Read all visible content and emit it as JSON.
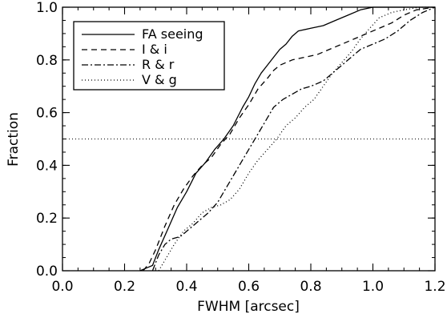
{
  "chart_data": {
    "type": "line",
    "title": "",
    "xlabel": "FWHM [arcsec]",
    "ylabel": "Fraction",
    "xlim": [
      0.0,
      1.2
    ],
    "ylim": [
      0.0,
      1.0
    ],
    "x_ticks": [
      "0.0",
      "0.2",
      "0.4",
      "0.6",
      "0.8",
      "1.0",
      "1.2"
    ],
    "y_ticks": [
      "0.0",
      "0.2",
      "0.4",
      "0.6",
      "0.8",
      "1.0"
    ],
    "x_tick_values": [
      0.0,
      0.2,
      0.4,
      0.6,
      0.8,
      1.0,
      1.2
    ],
    "y_tick_values": [
      0.0,
      0.2,
      0.4,
      0.6,
      0.8,
      1.0
    ],
    "reference_line": {
      "y": 0.5,
      "style": "dotted"
    },
    "legend": {
      "position": "top-left"
    },
    "grid": false,
    "series": [
      {
        "name": "FA seeing",
        "style": "solid",
        "x": [
          0.25,
          0.27,
          0.29,
          0.31,
          0.34,
          0.37,
          0.4,
          0.43,
          0.46,
          0.49,
          0.52,
          0.55,
          0.58,
          0.6,
          0.62,
          0.64,
          0.66,
          0.68,
          0.7,
          0.72,
          0.74,
          0.76,
          0.8,
          0.84,
          0.88,
          0.92,
          0.96,
          1.0,
          1.04,
          1.08,
          1.12,
          1.16,
          1.2
        ],
        "y": [
          0.0,
          0.01,
          0.02,
          0.08,
          0.16,
          0.24,
          0.3,
          0.37,
          0.41,
          0.46,
          0.5,
          0.55,
          0.62,
          0.66,
          0.71,
          0.75,
          0.78,
          0.81,
          0.84,
          0.86,
          0.89,
          0.91,
          0.92,
          0.93,
          0.95,
          0.97,
          0.99,
          1.0,
          1.0,
          1.0,
          1.0,
          1.0,
          1.0
        ]
      },
      {
        "name": "I & i",
        "style": "dashed",
        "x": [
          0.26,
          0.28,
          0.3,
          0.33,
          0.36,
          0.39,
          0.42,
          0.45,
          0.48,
          0.51,
          0.54,
          0.57,
          0.6,
          0.63,
          0.66,
          0.68,
          0.7,
          0.74,
          0.78,
          0.82,
          0.86,
          0.9,
          0.94,
          0.98,
          1.02,
          1.06,
          1.1,
          1.14,
          1.2
        ],
        "y": [
          0.0,
          0.03,
          0.08,
          0.17,
          0.25,
          0.31,
          0.36,
          0.4,
          0.43,
          0.48,
          0.52,
          0.58,
          0.63,
          0.69,
          0.73,
          0.76,
          0.78,
          0.8,
          0.81,
          0.82,
          0.84,
          0.86,
          0.88,
          0.9,
          0.92,
          0.94,
          0.97,
          0.99,
          1.0
        ]
      },
      {
        "name": "R & r",
        "style": "dashdot",
        "x": [
          0.29,
          0.31,
          0.33,
          0.35,
          0.38,
          0.41,
          0.44,
          0.47,
          0.5,
          0.53,
          0.56,
          0.59,
          0.62,
          0.65,
          0.68,
          0.71,
          0.74,
          0.77,
          0.8,
          0.84,
          0.88,
          0.92,
          0.96,
          1.0,
          1.04,
          1.08,
          1.12,
          1.16,
          1.2
        ],
        "y": [
          0.0,
          0.06,
          0.1,
          0.12,
          0.13,
          0.16,
          0.19,
          0.22,
          0.26,
          0.32,
          0.38,
          0.44,
          0.5,
          0.56,
          0.62,
          0.65,
          0.67,
          0.69,
          0.7,
          0.72,
          0.76,
          0.8,
          0.84,
          0.86,
          0.88,
          0.91,
          0.95,
          0.98,
          1.0
        ]
      },
      {
        "name": "V & g",
        "style": "dotted",
        "x": [
          0.31,
          0.33,
          0.36,
          0.39,
          0.42,
          0.45,
          0.48,
          0.51,
          0.54,
          0.57,
          0.6,
          0.63,
          0.66,
          0.69,
          0.72,
          0.75,
          0.78,
          0.81,
          0.84,
          0.87,
          0.9,
          0.93,
          0.96,
          0.99,
          1.02,
          1.06,
          1.1,
          1.15,
          1.2
        ],
        "y": [
          0.0,
          0.04,
          0.1,
          0.15,
          0.18,
          0.22,
          0.24,
          0.25,
          0.27,
          0.31,
          0.37,
          0.42,
          0.46,
          0.5,
          0.55,
          0.58,
          0.62,
          0.65,
          0.7,
          0.75,
          0.79,
          0.83,
          0.88,
          0.92,
          0.96,
          0.98,
          0.99,
          1.0,
          1.0
        ]
      }
    ]
  }
}
